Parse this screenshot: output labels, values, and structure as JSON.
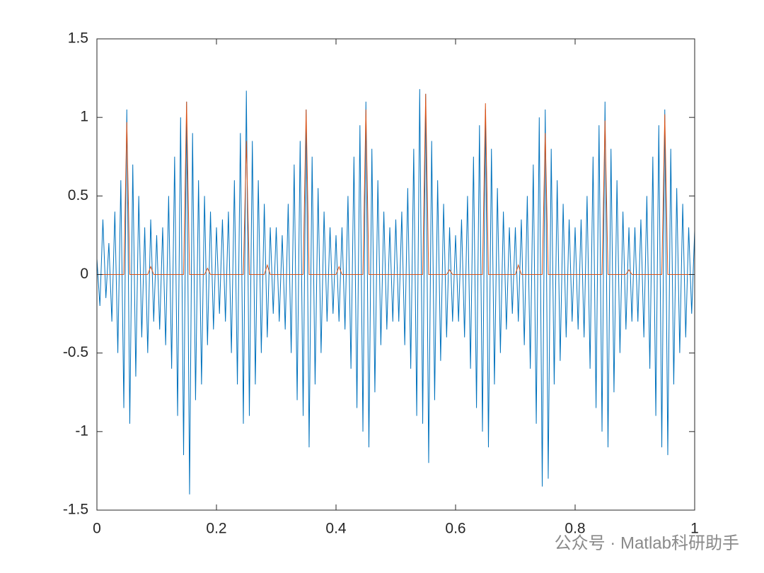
{
  "chart_data": {
    "type": "line",
    "annotation": "公众号 · Matlab科研助手",
    "x": [
      0,
      0.005,
      0.01,
      0.015,
      0.02,
      0.025,
      0.03,
      0.035,
      0.04,
      0.045,
      0.05,
      0.055,
      0.06,
      0.065,
      0.07,
      0.075,
      0.08,
      0.085,
      0.09,
      0.095,
      0.1,
      0.105,
      0.11,
      0.115,
      0.12,
      0.125,
      0.13,
      0.135,
      0.14,
      0.145,
      0.15,
      0.155,
      0.16,
      0.165,
      0.17,
      0.175,
      0.18,
      0.185,
      0.19,
      0.195,
      0.2,
      0.205,
      0.21,
      0.215,
      0.22,
      0.225,
      0.23,
      0.235,
      0.24,
      0.245,
      0.25,
      0.255,
      0.26,
      0.265,
      0.27,
      0.275,
      0.28,
      0.285,
      0.29,
      0.295,
      0.3,
      0.305,
      0.31,
      0.315,
      0.32,
      0.325,
      0.33,
      0.335,
      0.34,
      0.345,
      0.35,
      0.355,
      0.36,
      0.365,
      0.37,
      0.375,
      0.38,
      0.385,
      0.39,
      0.395,
      0.4,
      0.405,
      0.41,
      0.415,
      0.42,
      0.425,
      0.43,
      0.435,
      0.44,
      0.445,
      0.45,
      0.455,
      0.46,
      0.465,
      0.47,
      0.475,
      0.48,
      0.485,
      0.49,
      0.495,
      0.5,
      0.505,
      0.51,
      0.515,
      0.52,
      0.525,
      0.53,
      0.535,
      0.54,
      0.545,
      0.55,
      0.555,
      0.56,
      0.565,
      0.57,
      0.575,
      0.58,
      0.585,
      0.59,
      0.595,
      0.6,
      0.605,
      0.61,
      0.615,
      0.62,
      0.625,
      0.63,
      0.635,
      0.64,
      0.645,
      0.65,
      0.655,
      0.66,
      0.665,
      0.67,
      0.675,
      0.68,
      0.685,
      0.69,
      0.695,
      0.7,
      0.705,
      0.71,
      0.715,
      0.72,
      0.725,
      0.73,
      0.735,
      0.74,
      0.745,
      0.75,
      0.755,
      0.76,
      0.765,
      0.77,
      0.775,
      0.78,
      0.785,
      0.79,
      0.795,
      0.8,
      0.805,
      0.81,
      0.815,
      0.82,
      0.825,
      0.83,
      0.835,
      0.84,
      0.845,
      0.85,
      0.855,
      0.86,
      0.865,
      0.87,
      0.875,
      0.88,
      0.885,
      0.89,
      0.895,
      0.9,
      0.905,
      0.91,
      0.915,
      0.92,
      0.925,
      0.93,
      0.935,
      0.94,
      0.945,
      0.95,
      0.955,
      0.96,
      0.965,
      0.97,
      0.975,
      0.98,
      0.985,
      0.99,
      0.995,
      1
    ],
    "series": [
      {
        "color": "#0072bd",
        "values": [
          0.1,
          -0.2,
          0.35,
          -0.15,
          0.2,
          -0.3,
          0.4,
          -0.5,
          0.6,
          -0.85,
          1.05,
          -0.95,
          0.7,
          -0.65,
          0.5,
          -0.4,
          0.3,
          -0.5,
          0.35,
          -0.3,
          0.25,
          -0.35,
          0.3,
          -0.45,
          0.5,
          -0.6,
          0.75,
          -0.9,
          1.0,
          -1.15,
          1.1,
          -1.4,
          0.9,
          -0.8,
          0.6,
          -0.7,
          0.5,
          -0.45,
          0.4,
          -0.35,
          0.3,
          -0.25,
          0.35,
          -0.3,
          0.4,
          -0.5,
          0.6,
          -0.7,
          0.9,
          -0.95,
          1.17,
          -0.9,
          0.85,
          -0.7,
          0.6,
          -0.5,
          0.45,
          -0.4,
          0.3,
          -0.25,
          0.3,
          -0.3,
          0.25,
          -0.35,
          0.45,
          -0.5,
          0.7,
          -0.8,
          0.85,
          -0.9,
          1.05,
          -1.1,
          0.75,
          -0.7,
          0.55,
          -0.5,
          0.4,
          -0.3,
          0.3,
          -0.25,
          0.25,
          -0.3,
          0.3,
          -0.35,
          0.5,
          -0.6,
          0.75,
          -0.85,
          0.95,
          -1.0,
          1.1,
          -1.1,
          0.8,
          -0.75,
          0.6,
          -0.45,
          0.4,
          -0.35,
          0.3,
          -0.3,
          0.35,
          -0.3,
          0.4,
          -0.45,
          0.55,
          -0.6,
          0.8,
          -0.9,
          1.18,
          -0.95,
          1.15,
          -1.2,
          0.85,
          -0.8,
          0.6,
          -0.55,
          0.45,
          -0.4,
          0.3,
          -0.3,
          0.25,
          -0.3,
          0.35,
          -0.4,
          0.5,
          -0.6,
          0.75,
          -0.85,
          0.95,
          -1.0,
          1.05,
          -1.1,
          0.8,
          -0.7,
          0.55,
          -0.5,
          0.4,
          -0.35,
          0.3,
          -0.25,
          0.3,
          -0.3,
          0.35,
          -0.45,
          0.5,
          -0.6,
          0.7,
          -0.95,
          1.0,
          -1.35,
          1.05,
          -1.3,
          0.8,
          -0.7,
          0.6,
          -0.55,
          0.45,
          -0.4,
          0.35,
          -0.3,
          0.3,
          -0.35,
          0.35,
          -0.4,
          0.5,
          -0.6,
          0.75,
          -0.85,
          0.95,
          -1.0,
          1.1,
          -1.1,
          0.8,
          -0.75,
          0.6,
          -0.5,
          0.4,
          -0.35,
          0.3,
          -0.3,
          0.3,
          -0.3,
          0.35,
          -0.4,
          0.5,
          -0.6,
          0.75,
          -0.9,
          0.95,
          -1.1,
          1.05,
          -1.15,
          0.8,
          -0.7,
          0.55,
          -0.5,
          0.45,
          -0.4,
          0.3,
          -0.25,
          0.28
        ]
      },
      {
        "color": "#d95319",
        "values": [
          0,
          0,
          0,
          0,
          0,
          0,
          0,
          0,
          0,
          0,
          0.97,
          0,
          0,
          0,
          0,
          0,
          0,
          0,
          0.05,
          0,
          0,
          0,
          0,
          0,
          0,
          0,
          0,
          0,
          0,
          0,
          1.1,
          0,
          0,
          0,
          0,
          0,
          0,
          0.04,
          0,
          0,
          0,
          0,
          0,
          0,
          0,
          0,
          0,
          0,
          0,
          0,
          0.85,
          0,
          0,
          0,
          0,
          0,
          0,
          0.06,
          0,
          0,
          0,
          0,
          0,
          0,
          0,
          0,
          0,
          0,
          0,
          0,
          1.05,
          0,
          0,
          0,
          0,
          0,
          0,
          0,
          0,
          0,
          0,
          0.05,
          0,
          0,
          0,
          0,
          0,
          0,
          0,
          0,
          1.05,
          0,
          0,
          0,
          0,
          0,
          0,
          0,
          0,
          0,
          0,
          0,
          0,
          0,
          0,
          0,
          0,
          0,
          0,
          0,
          1.15,
          0,
          0,
          0,
          0,
          0,
          0,
          0,
          0.03,
          0,
          0,
          0,
          0,
          0,
          0,
          0,
          0,
          0,
          0,
          0,
          1.09,
          0,
          0,
          0,
          0,
          0,
          0,
          0,
          0,
          0,
          0,
          0.06,
          0,
          0,
          0,
          0,
          0,
          0,
          0,
          0,
          0.9,
          0,
          0,
          0,
          0,
          0,
          0,
          0,
          0,
          0,
          0,
          0,
          0,
          0,
          0,
          0,
          0,
          0,
          0,
          0,
          0.98,
          0,
          0,
          0,
          0,
          0,
          0,
          0,
          0.03,
          0,
          0,
          0,
          0,
          0,
          0,
          0,
          0,
          0,
          0,
          0,
          1.02,
          0,
          0,
          0,
          0,
          0,
          0,
          0,
          0,
          0,
          0
        ]
      }
    ],
    "xlim": [
      0,
      1
    ],
    "ylim": [
      -1.5,
      1.5
    ],
    "xticks": [
      0,
      0.2,
      0.4,
      0.6,
      0.8,
      1
    ],
    "yticks": [
      -1.5,
      -1,
      -0.5,
      0,
      0.5,
      1,
      1.5
    ]
  }
}
